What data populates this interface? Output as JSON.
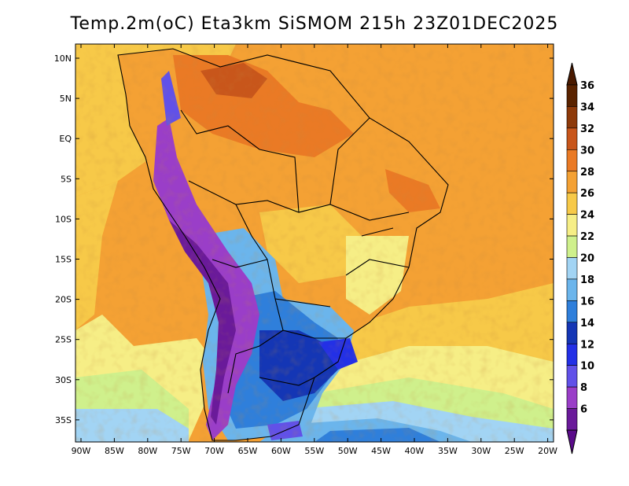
{
  "title": "Temp.2m(oC) Eta3km SiSMOM 215h 23Z01DEC2025",
  "lat_labels": [
    "10N",
    "5N",
    "EQ",
    "5S",
    "10S",
    "15S",
    "20S",
    "25S",
    "30S",
    "35S"
  ],
  "lon_labels": [
    "90W",
    "85W",
    "80W",
    "75W",
    "70W",
    "65W",
    "60W",
    "55W",
    "50W",
    "45W",
    "40W",
    "35W",
    "30W",
    "25W",
    "20W"
  ],
  "colorbar": {
    "labels": [
      "36",
      "34",
      "32",
      "30",
      "28",
      "26",
      "24",
      "22",
      "20",
      "18",
      "16",
      "14",
      "12",
      "10",
      "8",
      "6"
    ],
    "colors": [
      "#5a2300",
      "#8e3a0a",
      "#c8561b",
      "#ea7a25",
      "#f4a134",
      "#f7c948",
      "#f6ee86",
      "#cff08c",
      "#a2d4f4",
      "#6bb5ec",
      "#2f7fdb",
      "#1436b5",
      "#2330e6",
      "#6151e8",
      "#9a3ec8",
      "#6a1a9a"
    ],
    "max_color": "#4a1a00",
    "min_color": "#5a0b8a"
  }
}
